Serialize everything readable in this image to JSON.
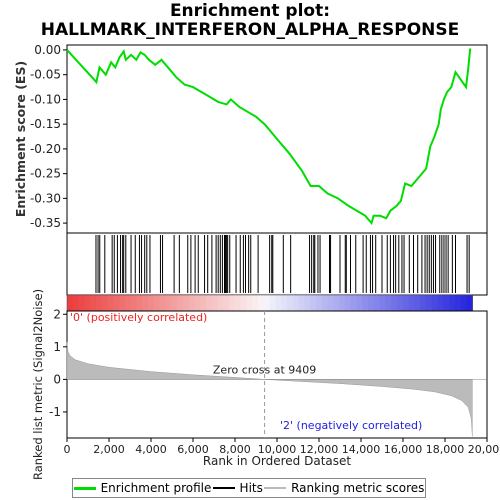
{
  "title_line1": "Enrichment plot:",
  "title_line2": "HALLMARK_INTERFERON_ALPHA_RESPONSE",
  "chart_data": {
    "type": "line",
    "panels": {
      "enrichment": {
        "ylabel": "Enrichment score (ES)",
        "ylim": [
          -0.37,
          0.01
        ],
        "yticks": [
          "0.00",
          "-0.05",
          "-0.10",
          "-0.15",
          "-0.20",
          "-0.25",
          "-0.30",
          "-0.35"
        ],
        "ytick_values": [
          0,
          -0.05,
          -0.1,
          -0.15,
          -0.2,
          -0.25,
          -0.3,
          -0.35
        ],
        "series": [
          {
            "name": "Enrichment profile",
            "color": "#00dd00",
            "x": [
              0,
              1400,
              1550,
              1850,
              2100,
              2300,
              2500,
              2700,
              2800,
              3050,
              3300,
              3500,
              3700,
              3900,
              4200,
              4500,
              4700,
              4900,
              5200,
              5600,
              6000,
              6400,
              6800,
              7200,
              7600,
              7800,
              8200,
              8600,
              9000,
              9409,
              10000,
              10600,
              11200,
              11600,
              12000,
              12400,
              12900,
              13400,
              13800,
              14200,
              14500,
              14600,
              14900,
              15200,
              15400,
              15700,
              15900,
              16100,
              16400,
              16700,
              16900,
              17100,
              17300,
              17500,
              17700,
              17800,
              17950,
              18100,
              18300,
              18500,
              19000,
              19100,
              19200
            ],
            "y": [
              0.0,
              -0.065,
              -0.035,
              -0.05,
              -0.025,
              -0.035,
              -0.015,
              -0.003,
              -0.02,
              -0.01,
              -0.02,
              -0.005,
              -0.01,
              -0.02,
              -0.03,
              -0.02,
              -0.03,
              -0.04,
              -0.055,
              -0.07,
              -0.075,
              -0.085,
              -0.095,
              -0.105,
              -0.11,
              -0.1,
              -0.115,
              -0.125,
              -0.135,
              -0.15,
              -0.18,
              -0.21,
              -0.245,
              -0.275,
              -0.275,
              -0.29,
              -0.3,
              -0.315,
              -0.325,
              -0.335,
              -0.35,
              -0.335,
              -0.335,
              -0.34,
              -0.325,
              -0.315,
              -0.305,
              -0.27,
              -0.275,
              -0.26,
              -0.25,
              -0.24,
              -0.195,
              -0.175,
              -0.15,
              -0.12,
              -0.1,
              -0.085,
              -0.075,
              -0.045,
              -0.075,
              -0.04,
              0.003
            ]
          }
        ]
      },
      "hits": {
        "positions": [
          1380,
          1480,
          1560,
          1800,
          2150,
          2250,
          2400,
          2550,
          2650,
          2700,
          2800,
          3050,
          3250,
          3450,
          3550,
          3700,
          3800,
          3950,
          4450,
          4550,
          5100,
          5350,
          5750,
          5900,
          6100,
          6250,
          6550,
          6700,
          6900,
          7100,
          7200,
          7300,
          7400,
          7500,
          7550,
          7600,
          7650,
          7750,
          8050,
          8250,
          8400,
          8500,
          8650,
          8750,
          9100,
          9650,
          9750,
          9800,
          10300,
          10650,
          11550,
          11650,
          11750,
          11800,
          11950,
          12050,
          12500,
          12550,
          13000,
          13250,
          13300,
          13500,
          13750,
          14100,
          14250,
          14450,
          14550,
          14700,
          15000,
          15250,
          15400,
          15550,
          15650,
          15800,
          15950,
          16050,
          16300,
          16500,
          16700,
          16900,
          17050,
          17150,
          17250,
          17350,
          17450,
          17550,
          17750,
          17850,
          17950,
          18050,
          18150,
          18350,
          18500,
          19050,
          19150
        ]
      },
      "ranked_metric": {
        "ylabel": "Ranked list metric (Signal2Noise)",
        "ylim": [
          -1.8,
          2.1
        ],
        "yticks": [
          "2",
          "1",
          "0",
          "-1"
        ],
        "ytick_values": [
          2,
          1,
          0,
          -1
        ],
        "xlabel": "Rank in Ordered Dataset",
        "xlim": [
          0,
          20000
        ],
        "xticks": [
          "0",
          "2,000",
          "4,000",
          "6,000",
          "8,000",
          "10,000",
          "12,000",
          "14,000",
          "16,000",
          "18,000",
          "20,000"
        ],
        "xtick_values": [
          0,
          2000,
          4000,
          6000,
          8000,
          10000,
          12000,
          14000,
          16000,
          18000,
          20000
        ],
        "zero_cross": 9409,
        "zero_cross_label": "Zero cross at 9409",
        "positive_label": "'0' (positively correlated)",
        "negative_label": "'2' (negatively correlated)",
        "positive_color": "#ee2222",
        "negative_color": "#2222dd",
        "fill_color": "#bbbbbb",
        "n_genes": 19300,
        "metric_x": [
          0,
          50,
          150,
          400,
          1000,
          2000,
          4000,
          6000,
          8000,
          9409,
          11000,
          13000,
          15000,
          16500,
          17500,
          18300,
          18800,
          19100,
          19250,
          19300
        ],
        "metric_y": [
          1.15,
          0.85,
          0.72,
          0.6,
          0.48,
          0.37,
          0.24,
          0.14,
          0.06,
          0.0,
          -0.06,
          -0.13,
          -0.22,
          -0.3,
          -0.38,
          -0.5,
          -0.65,
          -0.85,
          -1.2,
          -1.75
        ]
      }
    },
    "legend": [
      {
        "name": "Enrichment profile",
        "color": "#00dd00"
      },
      {
        "name": "Hits",
        "color": "#000000"
      },
      {
        "name": "Ranking metric scores",
        "color": "#bbbbbb"
      }
    ],
    "legend_position": "bottom"
  }
}
